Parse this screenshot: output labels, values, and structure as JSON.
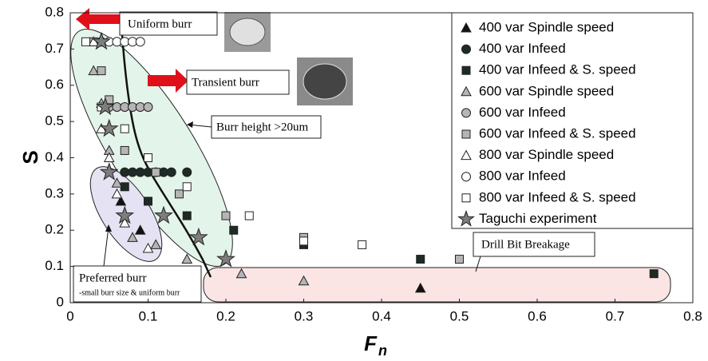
{
  "chart_data": {
    "type": "scatter",
    "xlabel": "F",
    "xlabel_subscript": "n",
    "ylabel": "S",
    "xlim": [
      0,
      0.8
    ],
    "ylim": [
      0,
      0.8
    ],
    "xticks": [
      0,
      0.1,
      0.2,
      0.3,
      0.4,
      0.5,
      0.6,
      0.7,
      0.8
    ],
    "yticks": [
      0,
      0.1,
      0.2,
      0.3,
      0.4,
      0.5,
      0.6,
      0.7,
      0.8
    ],
    "series": [
      {
        "name": "400 var Spindle speed",
        "marker": "triangle",
        "color": "#111111",
        "x": [
          0.065,
          0.09,
          0.45
        ],
        "y": [
          0.28,
          0.2,
          0.04
        ]
      },
      {
        "name": "400 var Infeed",
        "marker": "circle",
        "color": "#1e2a24",
        "x": [
          0.07,
          0.08,
          0.09,
          0.1,
          0.11,
          0.12,
          0.13,
          0.15
        ],
        "y": [
          0.36,
          0.36,
          0.36,
          0.36,
          0.36,
          0.36,
          0.36,
          0.36
        ]
      },
      {
        "name": "400 var Infeed & S. speed",
        "marker": "square",
        "color": "#1e2a24",
        "x": [
          0.07,
          0.1,
          0.15,
          0.21,
          0.3,
          0.45,
          0.75
        ],
        "y": [
          0.32,
          0.28,
          0.24,
          0.2,
          0.16,
          0.12,
          0.08
        ]
      },
      {
        "name": "600 var Spindle speed",
        "marker": "triangle",
        "color": "#b5b5b5",
        "x": [
          0.03,
          0.04,
          0.05,
          0.06,
          0.08,
          0.11,
          0.15,
          0.22,
          0.3
        ],
        "y": [
          0.64,
          0.55,
          0.42,
          0.33,
          0.18,
          0.16,
          0.12,
          0.08,
          0.06
        ]
      },
      {
        "name": "600 var Infeed",
        "marker": "circle",
        "color": "#b5b5b5",
        "x": [
          0.05,
          0.06,
          0.07,
          0.08,
          0.09,
          0.1
        ],
        "y": [
          0.54,
          0.54,
          0.54,
          0.54,
          0.54,
          0.54
        ]
      },
      {
        "name": "600 var Infeed & S. speed",
        "marker": "square",
        "color": "#b5b5b5",
        "x": [
          0.03,
          0.04,
          0.05,
          0.07,
          0.11,
          0.14,
          0.2,
          0.3,
          0.5
        ],
        "y": [
          0.72,
          0.64,
          0.56,
          0.42,
          0.36,
          0.3,
          0.24,
          0.18,
          0.12
        ]
      },
      {
        "name": "800 var Spindle speed",
        "marker": "triangle",
        "color": "#ffffff",
        "x": [
          0.03,
          0.04,
          0.05,
          0.06,
          0.07,
          0.1
        ],
        "y": [
          0.72,
          0.48,
          0.4,
          0.3,
          0.22,
          0.15
        ]
      },
      {
        "name": "800 var Infeed",
        "marker": "circle",
        "color": "#ffffff",
        "x": [
          0.04,
          0.05,
          0.06,
          0.07,
          0.08,
          0.09
        ],
        "y": [
          0.72,
          0.72,
          0.72,
          0.72,
          0.72,
          0.72
        ]
      },
      {
        "name": "800 var Infeed & S. speed",
        "marker": "square",
        "color": "#ffffff",
        "x": [
          0.02,
          0.04,
          0.07,
          0.1,
          0.15,
          0.23,
          0.3,
          0.375
        ],
        "y": [
          0.72,
          0.54,
          0.48,
          0.4,
          0.32,
          0.24,
          0.17,
          0.16
        ]
      },
      {
        "name": "Taguchi experiment",
        "marker": "star",
        "color": "#7d7d7d",
        "x": [
          0.04,
          0.045,
          0.05,
          0.05,
          0.07,
          0.12,
          0.165,
          0.2
        ],
        "y": [
          0.72,
          0.54,
          0.48,
          0.36,
          0.24,
          0.24,
          0.18,
          0.12
        ]
      }
    ],
    "annotations": {
      "uniform": "Uniform burr",
      "transient": "Transient burr",
      "height": "Burr height >20um",
      "preferred": "Preferred burr",
      "preferred_note": "-small burr size & uniform burr",
      "breakage": "Drill Bit Breakage"
    }
  }
}
